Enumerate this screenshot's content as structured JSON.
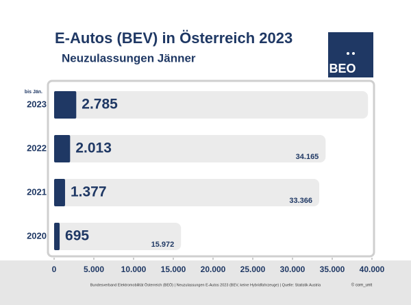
{
  "chart_data": {
    "type": "bar",
    "orientation": "horizontal",
    "title": "E-Autos (BEV) in Österreich 2023",
    "subtitle": "Neuzulassungen Jänner",
    "annotation": "bis Jän.",
    "categories": [
      "2023",
      "2022",
      "2021",
      "2020"
    ],
    "series": [
      {
        "color": "#ebebeb",
        "values": [
          39500,
          34165,
          33366,
          15972
        ],
        "value_labels": [
          null,
          "34.165",
          "33.366",
          "15.972"
        ]
      },
      {
        "color": "#1f3864",
        "values": [
          2785,
          2013,
          1377,
          695
        ],
        "value_labels": [
          "2.785",
          "2.013",
          "1.377",
          "695"
        ]
      }
    ],
    "xlim": [
      0,
      40000
    ],
    "xticks": [
      0,
      {
        "value": 5000,
        "label": "5.000"
      },
      {
        "value": 10000,
        "label": "10.000"
      },
      {
        "value": 15000,
        "label": "15.000"
      },
      {
        "value": 20000,
        "label": "20.000"
      },
      {
        "value": 25000,
        "label": "25.000"
      },
      {
        "value": 30000,
        "label": "30.000"
      },
      {
        "value": 35000,
        "label": "35.000"
      },
      {
        "value": 40000,
        "label": "40.000"
      }
    ]
  },
  "logo": "BEO",
  "footer": {
    "source": "Bundesverband Elektromobilität Österreich (BEÖ) | Neuzulassungen E-Autos 2023 (BEV, keine Hybridfahrzeuge) | Quelle: Statistik Austria",
    "credit": "© com_unit"
  }
}
